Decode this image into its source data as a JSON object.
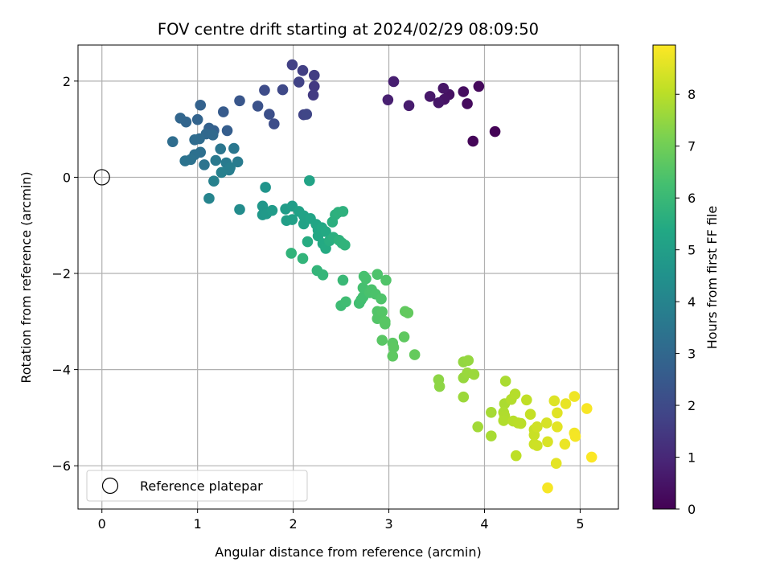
{
  "chart_data": {
    "type": "scatter",
    "title": "FOV centre drift starting at 2024/02/29 08:09:50",
    "xlabel": "Angular distance from reference (arcmin)",
    "ylabel": "Rotation from reference (arcmin)",
    "xlim": [
      -0.25,
      5.4
    ],
    "ylim": [
      -6.9,
      2.75
    ],
    "xticks": [
      0,
      1,
      2,
      3,
      4,
      5
    ],
    "yticks": [
      -6,
      -4,
      -2,
      0,
      2
    ],
    "grid": true,
    "legend": {
      "position": "lower-left",
      "entries": [
        "Reference platepar"
      ]
    },
    "reference": {
      "x": 0,
      "y": 0,
      "marker": "open-circle"
    },
    "colorbar": {
      "label": "Hours from first FF file",
      "min": 0,
      "max": 8.95,
      "ticks": [
        0,
        1,
        2,
        3,
        4,
        5,
        6,
        7,
        8
      ],
      "colormap": "viridis"
    },
    "points": [
      {
        "x": 4.11,
        "y": 0.95,
        "t": 0.05
      },
      {
        "x": 3.88,
        "y": 0.75,
        "t": 0.1
      },
      {
        "x": 3.94,
        "y": 1.89,
        "t": 0.2
      },
      {
        "x": 3.82,
        "y": 1.53,
        "t": 0.25
      },
      {
        "x": 3.78,
        "y": 1.78,
        "t": 0.3
      },
      {
        "x": 3.63,
        "y": 1.72,
        "t": 0.4
      },
      {
        "x": 3.58,
        "y": 1.62,
        "t": 0.45
      },
      {
        "x": 3.57,
        "y": 1.85,
        "t": 0.5
      },
      {
        "x": 3.52,
        "y": 1.55,
        "t": 0.55
      },
      {
        "x": 3.43,
        "y": 1.68,
        "t": 0.6
      },
      {
        "x": 3.21,
        "y": 1.49,
        "t": 0.7
      },
      {
        "x": 3.05,
        "y": 1.99,
        "t": 0.75
      },
      {
        "x": 2.99,
        "y": 1.61,
        "t": 0.8
      },
      {
        "x": 2.22,
        "y": 1.89,
        "t": 1.5
      },
      {
        "x": 2.21,
        "y": 1.71,
        "t": 1.55
      },
      {
        "x": 2.22,
        "y": 2.12,
        "t": 1.6
      },
      {
        "x": 2.1,
        "y": 2.22,
        "t": 1.65
      },
      {
        "x": 1.99,
        "y": 2.34,
        "t": 1.7
      },
      {
        "x": 2.06,
        "y": 1.98,
        "t": 1.75
      },
      {
        "x": 2.11,
        "y": 1.3,
        "t": 1.8
      },
      {
        "x": 2.14,
        "y": 1.31,
        "t": 1.85
      },
      {
        "x": 1.89,
        "y": 1.82,
        "t": 1.95
      },
      {
        "x": 1.7,
        "y": 1.81,
        "t": 2.05
      },
      {
        "x": 1.8,
        "y": 1.11,
        "t": 2.1
      },
      {
        "x": 1.75,
        "y": 1.31,
        "t": 2.15
      },
      {
        "x": 1.63,
        "y": 1.48,
        "t": 2.25
      },
      {
        "x": 1.44,
        "y": 1.59,
        "t": 2.4
      },
      {
        "x": 1.27,
        "y": 1.36,
        "t": 2.55
      },
      {
        "x": 1.31,
        "y": 0.97,
        "t": 2.65
      },
      {
        "x": 1.17,
        "y": 0.97,
        "t": 2.7
      },
      {
        "x": 1.12,
        "y": 1.02,
        "t": 2.75
      },
      {
        "x": 1.03,
        "y": 1.5,
        "t": 2.8
      },
      {
        "x": 1.0,
        "y": 1.2,
        "t": 2.85
      },
      {
        "x": 0.88,
        "y": 1.15,
        "t": 2.9
      },
      {
        "x": 0.82,
        "y": 1.23,
        "t": 2.95
      },
      {
        "x": 1.09,
        "y": 0.9,
        "t": 3.0
      },
      {
        "x": 1.16,
        "y": 0.88,
        "t": 3.05
      },
      {
        "x": 1.02,
        "y": 0.8,
        "t": 3.1
      },
      {
        "x": 0.97,
        "y": 0.78,
        "t": 3.15
      },
      {
        "x": 0.74,
        "y": 0.74,
        "t": 3.2
      },
      {
        "x": 1.03,
        "y": 0.52,
        "t": 3.25
      },
      {
        "x": 0.97,
        "y": 0.47,
        "t": 3.3
      },
      {
        "x": 0.93,
        "y": 0.37,
        "t": 3.35
      },
      {
        "x": 0.87,
        "y": 0.34,
        "t": 3.4
      },
      {
        "x": 1.07,
        "y": 0.26,
        "t": 3.45
      },
      {
        "x": 1.24,
        "y": 0.59,
        "t": 3.5
      },
      {
        "x": 1.38,
        "y": 0.6,
        "t": 3.55
      },
      {
        "x": 1.19,
        "y": 0.35,
        "t": 3.6
      },
      {
        "x": 1.3,
        "y": 0.3,
        "t": 3.65
      },
      {
        "x": 1.42,
        "y": 0.32,
        "t": 3.7
      },
      {
        "x": 1.34,
        "y": 0.2,
        "t": 3.75
      },
      {
        "x": 1.33,
        "y": 0.15,
        "t": 3.8
      },
      {
        "x": 1.25,
        "y": 0.1,
        "t": 3.85
      },
      {
        "x": 1.17,
        "y": -0.08,
        "t": 3.9
      },
      {
        "x": 1.12,
        "y": -0.44,
        "t": 4.0
      },
      {
        "x": 1.44,
        "y": -0.67,
        "t": 4.3
      },
      {
        "x": 1.71,
        "y": -0.21,
        "t": 4.6
      },
      {
        "x": 1.68,
        "y": -0.6,
        "t": 4.7
      },
      {
        "x": 1.68,
        "y": -0.78,
        "t": 4.75
      },
      {
        "x": 1.72,
        "y": -0.76,
        "t": 4.8
      },
      {
        "x": 1.78,
        "y": -0.69,
        "t": 4.85
      },
      {
        "x": 1.92,
        "y": -0.66,
        "t": 4.9
      },
      {
        "x": 1.99,
        "y": -0.6,
        "t": 4.95
      },
      {
        "x": 1.93,
        "y": -0.9,
        "t": 5.0
      },
      {
        "x": 1.99,
        "y": -0.88,
        "t": 5.05
      },
      {
        "x": 2.06,
        "y": -0.71,
        "t": 5.1
      },
      {
        "x": 2.11,
        "y": -0.8,
        "t": 5.12
      },
      {
        "x": 2.11,
        "y": -0.97,
        "t": 5.15
      },
      {
        "x": 2.17,
        "y": -0.07,
        "t": 5.18
      },
      {
        "x": 2.18,
        "y": -0.86,
        "t": 5.2
      },
      {
        "x": 2.24,
        "y": -0.98,
        "t": 5.25
      },
      {
        "x": 2.26,
        "y": -1.1,
        "t": 5.3
      },
      {
        "x": 2.26,
        "y": -1.22,
        "t": 5.35
      },
      {
        "x": 2.3,
        "y": -1.05,
        "t": 5.38
      },
      {
        "x": 2.34,
        "y": -1.13,
        "t": 5.4
      },
      {
        "x": 2.31,
        "y": -1.38,
        "t": 5.42
      },
      {
        "x": 2.34,
        "y": -1.48,
        "t": 5.45
      },
      {
        "x": 2.15,
        "y": -1.34,
        "t": 5.5
      },
      {
        "x": 2.38,
        "y": -1.32,
        "t": 5.55
      },
      {
        "x": 2.42,
        "y": -1.25,
        "t": 5.6
      },
      {
        "x": 2.41,
        "y": -0.93,
        "t": 5.62
      },
      {
        "x": 2.44,
        "y": -0.78,
        "t": 5.65
      },
      {
        "x": 2.47,
        "y": -0.73,
        "t": 5.68
      },
      {
        "x": 2.52,
        "y": -0.71,
        "t": 5.7
      },
      {
        "x": 2.48,
        "y": -1.31,
        "t": 5.72
      },
      {
        "x": 2.51,
        "y": -1.37,
        "t": 5.75
      },
      {
        "x": 2.54,
        "y": -1.41,
        "t": 5.78
      },
      {
        "x": 1.98,
        "y": -1.58,
        "t": 5.8
      },
      {
        "x": 2.1,
        "y": -1.69,
        "t": 5.82
      },
      {
        "x": 2.25,
        "y": -1.94,
        "t": 5.85
      },
      {
        "x": 2.31,
        "y": -2.03,
        "t": 5.88
      },
      {
        "x": 2.52,
        "y": -2.14,
        "t": 6.0
      },
      {
        "x": 2.5,
        "y": -2.67,
        "t": 6.1
      },
      {
        "x": 2.55,
        "y": -2.59,
        "t": 6.15
      },
      {
        "x": 2.69,
        "y": -2.62,
        "t": 6.2
      },
      {
        "x": 2.71,
        "y": -2.55,
        "t": 6.22
      },
      {
        "x": 2.73,
        "y": -2.49,
        "t": 6.25
      },
      {
        "x": 2.73,
        "y": -2.3,
        "t": 6.28
      },
      {
        "x": 2.74,
        "y": -2.06,
        "t": 6.3
      },
      {
        "x": 2.76,
        "y": -2.11,
        "t": 6.32
      },
      {
        "x": 2.8,
        "y": -2.4,
        "t": 6.35
      },
      {
        "x": 2.82,
        "y": -2.34,
        "t": 6.38
      },
      {
        "x": 2.86,
        "y": -2.43,
        "t": 6.4
      },
      {
        "x": 2.88,
        "y": -2.02,
        "t": 6.42
      },
      {
        "x": 2.92,
        "y": -2.53,
        "t": 6.45
      },
      {
        "x": 2.97,
        "y": -2.14,
        "t": 6.48
      },
      {
        "x": 2.88,
        "y": -2.79,
        "t": 6.5
      },
      {
        "x": 2.88,
        "y": -2.94,
        "t": 6.52
      },
      {
        "x": 2.93,
        "y": -2.8,
        "t": 6.55
      },
      {
        "x": 2.96,
        "y": -3.05,
        "t": 6.58
      },
      {
        "x": 2.96,
        "y": -3.0,
        "t": 6.6
      },
      {
        "x": 2.93,
        "y": -3.39,
        "t": 6.62
      },
      {
        "x": 3.04,
        "y": -3.45,
        "t": 6.65
      },
      {
        "x": 3.05,
        "y": -3.54,
        "t": 6.68
      },
      {
        "x": 3.04,
        "y": -3.72,
        "t": 6.7
      },
      {
        "x": 3.16,
        "y": -3.32,
        "t": 6.72
      },
      {
        "x": 3.17,
        "y": -2.79,
        "t": 6.75
      },
      {
        "x": 3.2,
        "y": -2.82,
        "t": 6.78
      },
      {
        "x": 3.27,
        "y": -3.69,
        "t": 6.8
      },
      {
        "x": 3.52,
        "y": -4.21,
        "t": 7.4
      },
      {
        "x": 3.53,
        "y": -4.35,
        "t": 7.42
      },
      {
        "x": 3.78,
        "y": -3.84,
        "t": 7.5
      },
      {
        "x": 3.83,
        "y": -3.81,
        "t": 7.52
      },
      {
        "x": 3.78,
        "y": -4.17,
        "t": 7.55
      },
      {
        "x": 3.82,
        "y": -4.07,
        "t": 7.58
      },
      {
        "x": 3.89,
        "y": -4.1,
        "t": 7.6
      },
      {
        "x": 3.78,
        "y": -4.57,
        "t": 7.62
      },
      {
        "x": 3.93,
        "y": -5.19,
        "t": 7.7
      },
      {
        "x": 4.07,
        "y": -4.89,
        "t": 7.75
      },
      {
        "x": 4.07,
        "y": -5.38,
        "t": 7.78
      },
      {
        "x": 4.22,
        "y": -4.24,
        "t": 7.8
      },
      {
        "x": 4.21,
        "y": -4.71,
        "t": 7.82
      },
      {
        "x": 4.2,
        "y": -4.89,
        "t": 7.85
      },
      {
        "x": 4.21,
        "y": -4.96,
        "t": 7.88
      },
      {
        "x": 4.2,
        "y": -5.06,
        "t": 7.9
      },
      {
        "x": 4.28,
        "y": -4.62,
        "t": 7.92
      },
      {
        "x": 4.32,
        "y": -4.51,
        "t": 7.95
      },
      {
        "x": 4.3,
        "y": -5.07,
        "t": 7.98
      },
      {
        "x": 4.35,
        "y": -5.11,
        "t": 8.0
      },
      {
        "x": 4.38,
        "y": -5.12,
        "t": 8.02
      },
      {
        "x": 4.33,
        "y": -5.79,
        "t": 8.05
      },
      {
        "x": 4.44,
        "y": -4.63,
        "t": 8.1
      },
      {
        "x": 4.48,
        "y": -4.93,
        "t": 8.15
      },
      {
        "x": 4.52,
        "y": -5.25,
        "t": 8.2
      },
      {
        "x": 4.52,
        "y": -5.36,
        "t": 8.22
      },
      {
        "x": 4.52,
        "y": -5.55,
        "t": 8.25
      },
      {
        "x": 4.55,
        "y": -5.58,
        "t": 8.28
      },
      {
        "x": 4.55,
        "y": -5.19,
        "t": 8.3
      },
      {
        "x": 4.65,
        "y": -5.11,
        "t": 8.4
      },
      {
        "x": 4.66,
        "y": -5.5,
        "t": 8.45
      },
      {
        "x": 4.73,
        "y": -4.65,
        "t": 8.5
      },
      {
        "x": 4.76,
        "y": -4.9,
        "t": 8.55
      },
      {
        "x": 4.76,
        "y": -5.19,
        "t": 8.58
      },
      {
        "x": 4.75,
        "y": -5.95,
        "t": 8.6
      },
      {
        "x": 4.85,
        "y": -4.71,
        "t": 8.65
      },
      {
        "x": 4.84,
        "y": -5.55,
        "t": 8.7
      },
      {
        "x": 4.94,
        "y": -4.56,
        "t": 8.75
      },
      {
        "x": 4.94,
        "y": -5.32,
        "t": 8.8
      },
      {
        "x": 4.95,
        "y": -5.39,
        "t": 8.82
      },
      {
        "x": 4.66,
        "y": -6.46,
        "t": 8.85
      },
      {
        "x": 5.07,
        "y": -4.81,
        "t": 8.88
      },
      {
        "x": 5.12,
        "y": -5.82,
        "t": 8.92
      }
    ]
  }
}
